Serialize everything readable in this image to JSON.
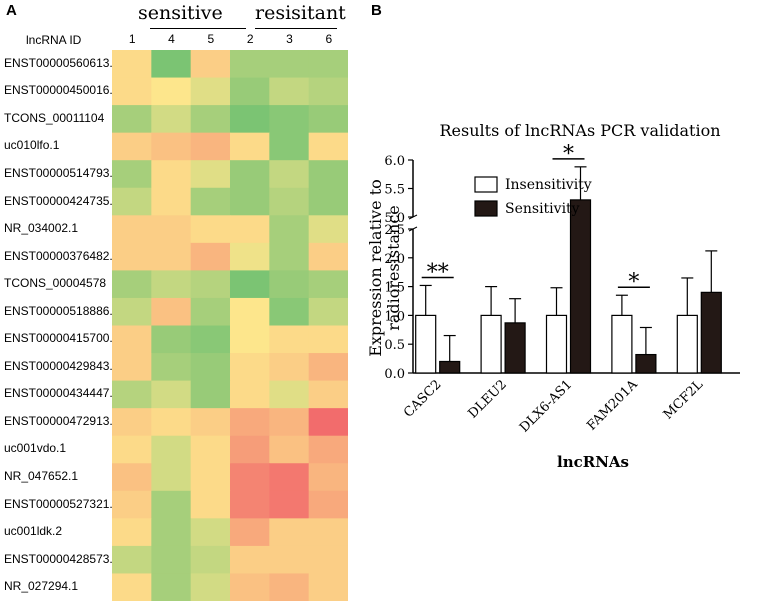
{
  "chart_data": [
    {
      "type": "heatmap",
      "panel_label": "A",
      "y_header": "lncRNA ID",
      "groups": [
        {
          "label": "sensitive",
          "columns": [
            "1",
            "4",
            "5"
          ]
        },
        {
          "label": "resisitant",
          "columns": [
            "2",
            "3",
            "6"
          ]
        }
      ],
      "columns": [
        "1",
        "4",
        "5",
        "2",
        "3",
        "6"
      ],
      "rows": [
        "ENST00000560613.1",
        "ENST00000450016.1",
        "TCONS_00011104",
        "uc010lfo.1",
        "ENST00000514793.1",
        "ENST00000424735.1",
        "NR_034002.1",
        "ENST00000376482.3",
        "TCONS_00004578",
        "ENST00000518886.1",
        "ENST00000415700.1",
        "ENST00000429843.1",
        "ENST00000434447.1",
        "ENST00000472913.1",
        "uc001vdo.1",
        "NR_047652.1",
        "ENST00000527321.1",
        "uc001ldk.2",
        "ENST00000428573.1",
        "NR_027294.1"
      ],
      "values": [
        [
          0.1,
          -0.9,
          0.2,
          -0.6,
          -0.6,
          -0.6
        ],
        [
          0.1,
          0.0,
          -0.2,
          -0.7,
          -0.4,
          -0.5
        ],
        [
          -0.6,
          -0.3,
          -0.6,
          -0.9,
          -0.8,
          -0.7
        ],
        [
          0.2,
          0.3,
          0.4,
          0.1,
          -0.8,
          0.1
        ],
        [
          -0.6,
          0.1,
          -0.2,
          -0.7,
          -0.4,
          -0.7
        ],
        [
          -0.4,
          0.1,
          -0.6,
          -0.7,
          -0.5,
          -0.7
        ],
        [
          0.2,
          0.2,
          0.1,
          0.1,
          -0.6,
          -0.2
        ],
        [
          0.2,
          0.2,
          0.4,
          -0.1,
          -0.6,
          0.2
        ],
        [
          -0.6,
          -0.4,
          -0.5,
          -0.9,
          -0.7,
          -0.6
        ],
        [
          -0.4,
          0.3,
          -0.6,
          0.0,
          -0.8,
          -0.4
        ],
        [
          0.2,
          -0.7,
          -0.8,
          0.0,
          0.1,
          0.1
        ],
        [
          0.2,
          -0.6,
          -0.7,
          0.1,
          0.2,
          0.4
        ],
        [
          -0.5,
          -0.3,
          -0.7,
          0.1,
          -0.2,
          0.2
        ],
        [
          0.2,
          0.1,
          0.2,
          0.5,
          0.4,
          1.0
        ],
        [
          0.1,
          -0.3,
          0.1,
          0.6,
          0.3,
          0.5
        ],
        [
          0.3,
          -0.3,
          0.1,
          0.8,
          0.9,
          0.4
        ],
        [
          0.2,
          -0.6,
          0.1,
          0.8,
          0.9,
          0.5
        ],
        [
          0.1,
          -0.6,
          -0.3,
          0.5,
          0.2,
          0.2
        ],
        [
          -0.4,
          -0.6,
          -0.4,
          0.2,
          0.2,
          0.2
        ],
        [
          0.1,
          -0.6,
          -0.3,
          0.3,
          0.4,
          0.2
        ]
      ],
      "color_low": "#6cc070",
      "color_mid": "#fde68c",
      "color_high": "#f26c6c"
    },
    {
      "type": "bar",
      "panel_label": "B",
      "title": "Results of lncRNAs PCR validation",
      "xlabel": "lncRNAs",
      "ylabel": "Expression relative to radioresistance",
      "categories": [
        "CASC2",
        "DLEU2",
        "DLX6-AS1",
        "FAM201A",
        "MCF2L"
      ],
      "series": [
        {
          "name": "Insensitivity",
          "values": [
            1.0,
            1.0,
            1.0,
            1.0,
            1.0
          ],
          "errors": [
            0.52,
            0.5,
            0.48,
            0.35,
            0.65
          ],
          "fill": "#ffffff"
        },
        {
          "name": "Sensitivity",
          "values": [
            0.2,
            0.87,
            5.3,
            0.32,
            1.4
          ],
          "errors": [
            0.45,
            0.42,
            0.58,
            0.47,
            0.72
          ],
          "fill": "#231815"
        }
      ],
      "y_lower_range": [
        0,
        2.5
      ],
      "y_upper_range": [
        5.0,
        6.0
      ],
      "y_lower_ticks": [
        "0.0",
        "0.5",
        "1.0",
        "1.5",
        "2.0",
        "2.5"
      ],
      "y_upper_ticks": [
        "5.0",
        "5.5",
        "6.0"
      ],
      "significance": [
        {
          "category": "CASC2",
          "label": "**"
        },
        {
          "category": "DLX6-AS1",
          "label": "*"
        },
        {
          "category": "FAM201A",
          "label": "*"
        }
      ]
    }
  ]
}
